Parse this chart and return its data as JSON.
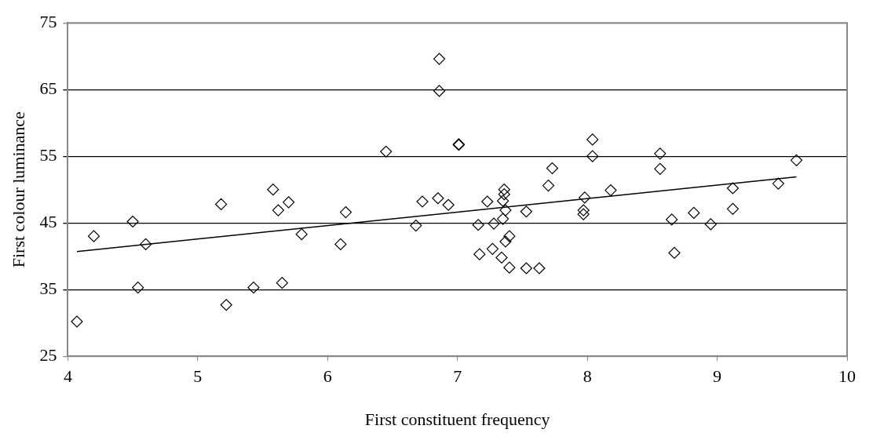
{
  "chart_data": {
    "type": "scatter",
    "xlabel": "First constituent frequency",
    "ylabel": "First colour luminance",
    "xlim": [
      4,
      10
    ],
    "xticks": [
      4,
      5,
      6,
      7,
      8,
      9,
      10
    ],
    "ylim": [
      25,
      75
    ],
    "yticks": [
      25,
      35,
      45,
      55,
      65,
      75
    ],
    "grid": "y",
    "legend": false,
    "marker": "diamond",
    "series": [
      {
        "color": "#000000",
        "x": [
          4.07,
          4.2,
          4.5,
          4.54,
          4.6,
          5.18,
          5.22,
          5.43,
          5.58,
          5.62,
          5.65,
          5.7,
          5.8,
          6.1,
          6.14,
          6.45,
          6.68,
          6.73,
          6.85,
          6.86,
          6.86,
          6.93,
          7.01,
          7.01,
          7.16,
          7.17,
          7.23,
          7.27,
          7.28,
          7.34,
          7.35,
          7.35,
          7.36,
          7.36,
          7.37,
          7.37,
          7.4,
          7.4,
          7.53,
          7.53,
          7.63,
          7.7,
          7.73,
          7.97,
          7.97,
          7.98,
          8.04,
          8.04,
          8.18,
          8.56,
          8.56,
          8.65,
          8.67,
          8.82,
          8.95,
          9.12,
          9.12,
          9.47,
          9.61
        ],
        "values": [
          30.2,
          43,
          45.2,
          35.3,
          41.8,
          47.8,
          32.7,
          35.3,
          50,
          46.9,
          36,
          48.1,
          43.3,
          41.8,
          46.6,
          55.7,
          44.6,
          48.2,
          48.7,
          69.6,
          64.8,
          47.7,
          56.7,
          56.8,
          44.7,
          40.3,
          48.2,
          41.1,
          44.9,
          39.8,
          45.6,
          48.3,
          49.3,
          50,
          46.9,
          42.2,
          43,
          38.3,
          38.2,
          46.7,
          38.2,
          50.6,
          53.2,
          46.3,
          46.9,
          48.8,
          57.5,
          55,
          49.9,
          55.4,
          53.1,
          45.5,
          40.5,
          46.5,
          44.8,
          50.2,
          47.1,
          50.9,
          54.4
        ]
      },
      {
        "type": "line",
        "color": "#000000",
        "marker": "none",
        "x": [
          4.07,
          9.61
        ],
        "values": [
          40.7,
          51.9
        ]
      }
    ]
  }
}
